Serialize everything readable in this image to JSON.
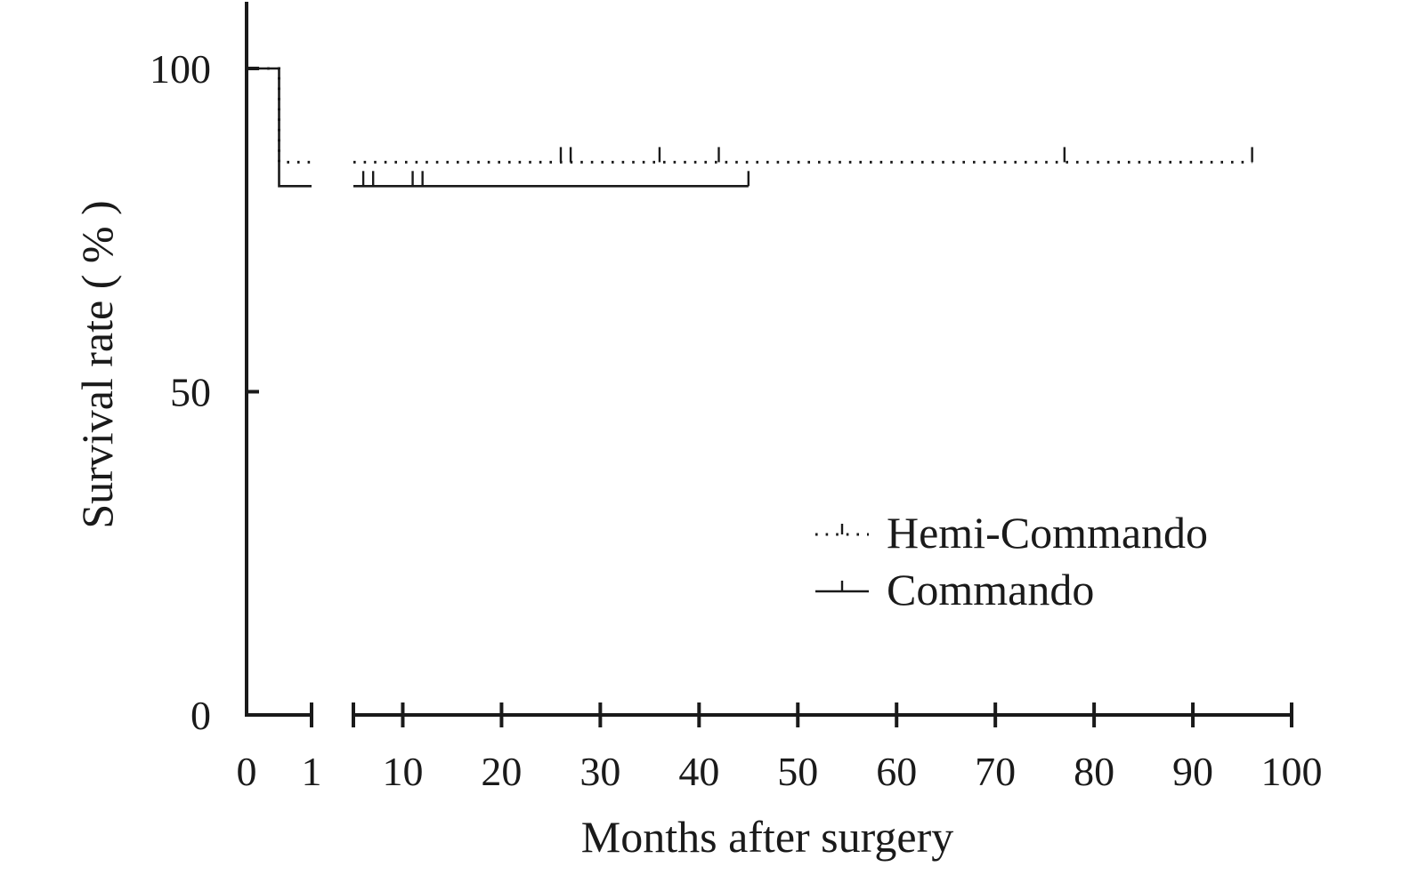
{
  "chart_data": {
    "type": "line",
    "title": "",
    "xlabel": "Months after surgery",
    "ylabel": "Survival rate ( % )",
    "xlim": [
      0,
      100
    ],
    "ylim": [
      0,
      100
    ],
    "axis_break": [
      1,
      5
    ],
    "x_ticks": [
      0,
      1,
      10,
      20,
      30,
      40,
      50,
      60,
      70,
      80,
      90,
      100
    ],
    "x_tick_labels": [
      "0",
      "1",
      "10",
      "20",
      "30",
      "40",
      "50",
      "60",
      "70",
      "80",
      "90",
      "100"
    ],
    "y_ticks": [
      0,
      50,
      100
    ],
    "y_tick_labels": [
      "0",
      "50",
      "100"
    ],
    "grid": false,
    "legend_position": "lower-right",
    "series": [
      {
        "name": "Hemi-Commando",
        "style": "dotted",
        "color": "#1a1a1a",
        "steps": [
          [
            0,
            100
          ],
          [
            0.5,
            100
          ],
          [
            0.5,
            85.5
          ],
          [
            96,
            85.5
          ]
        ],
        "censored": [
          [
            26,
            85.5
          ],
          [
            27,
            85.5
          ],
          [
            36,
            85.5
          ],
          [
            42,
            85.5
          ],
          [
            77,
            85.5
          ],
          [
            96,
            85.5
          ]
        ]
      },
      {
        "name": "Commando",
        "style": "solid",
        "color": "#1a1a1a",
        "steps": [
          [
            0,
            100
          ],
          [
            0.5,
            100
          ],
          [
            0.5,
            81.8
          ],
          [
            45,
            81.8
          ]
        ],
        "censored": [
          [
            6,
            81.8
          ],
          [
            7,
            81.8
          ],
          [
            11,
            81.8
          ],
          [
            12,
            81.8
          ],
          [
            45,
            81.8
          ]
        ]
      }
    ]
  }
}
